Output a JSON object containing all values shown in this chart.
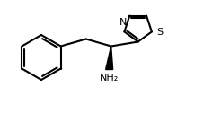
{
  "background_color": "#ffffff",
  "line_color": "#000000",
  "line_width": 1.5,
  "label_NH2": "NH₂",
  "label_S": "S",
  "label_N": "N",
  "figsize": [
    2.46,
    1.36
  ],
  "dpi": 100
}
